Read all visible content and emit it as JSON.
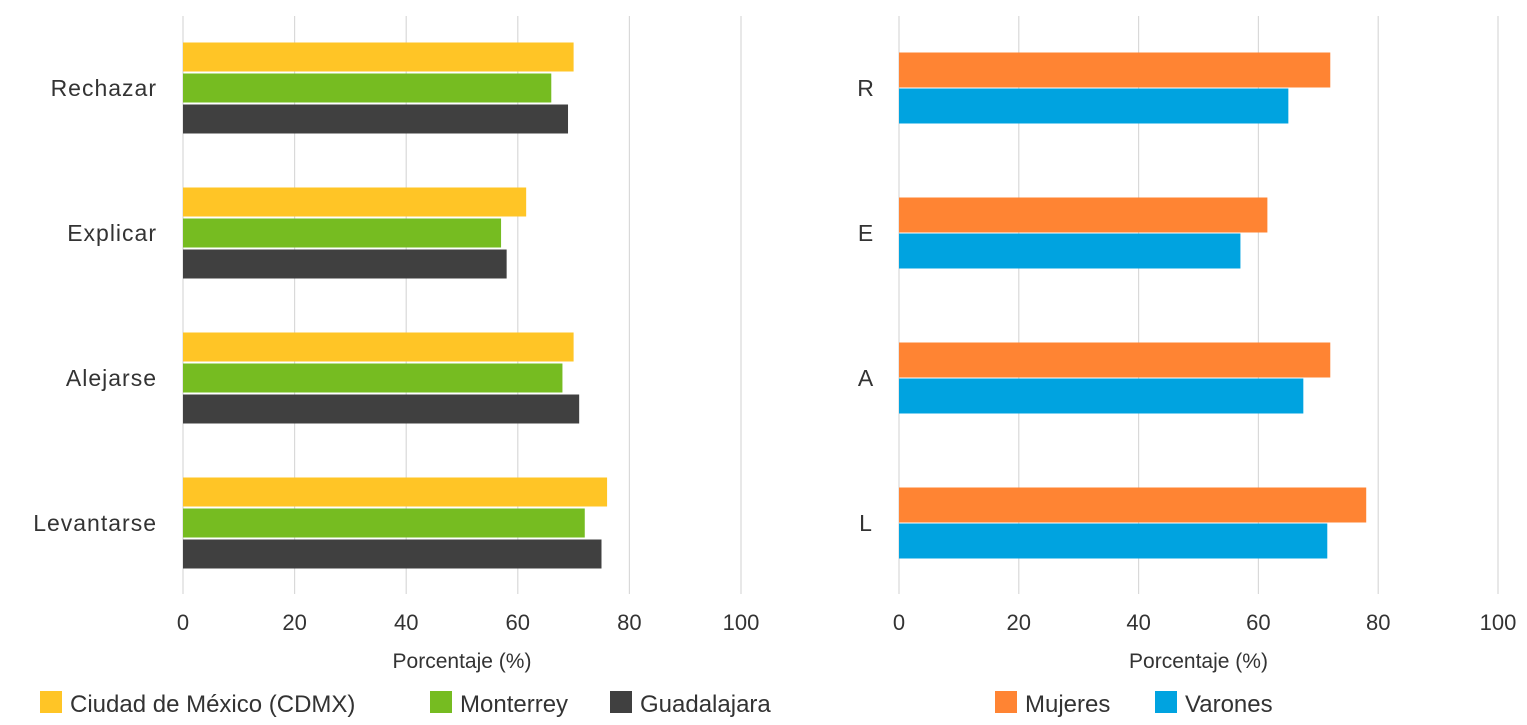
{
  "chart_data": [
    {
      "type": "bar",
      "orientation": "horizontal",
      "categories": [
        "Rechazar",
        "Explicar",
        "Alejarse",
        "Levantarse"
      ],
      "series": [
        {
          "name": "Ciudad de México (CDMX)",
          "color": "#FFC526",
          "values": [
            70,
            61.5,
            70,
            76
          ]
        },
        {
          "name": "Monterrey",
          "color": "#76BC21",
          "values": [
            66,
            57,
            68,
            72
          ]
        },
        {
          "name": "Guadalajara",
          "color": "#404040",
          "values": [
            69,
            58,
            71,
            75
          ]
        }
      ],
      "xlabel": "Porcentaje (%)",
      "xlim": [
        0,
        100
      ],
      "xticks": [
        "0",
        "20",
        "40",
        "60",
        "80",
        "100"
      ],
      "grid": "vertical",
      "legend": "bottom"
    },
    {
      "type": "bar",
      "orientation": "horizontal",
      "categories": [
        "R",
        "E",
        "A",
        "L"
      ],
      "series": [
        {
          "name": "Mujeres",
          "color": "#FF8433",
          "values": [
            72,
            61.5,
            72,
            78
          ]
        },
        {
          "name": "Varones",
          "color": "#00A3E0",
          "values": [
            65,
            57,
            67.5,
            71.5
          ]
        }
      ],
      "xlabel": "Porcentaje (%)",
      "xlim": [
        0,
        100
      ],
      "xticks": [
        "0",
        "20",
        "40",
        "60",
        "80",
        "100"
      ],
      "grid": "vertical",
      "legend": "bottom"
    }
  ]
}
